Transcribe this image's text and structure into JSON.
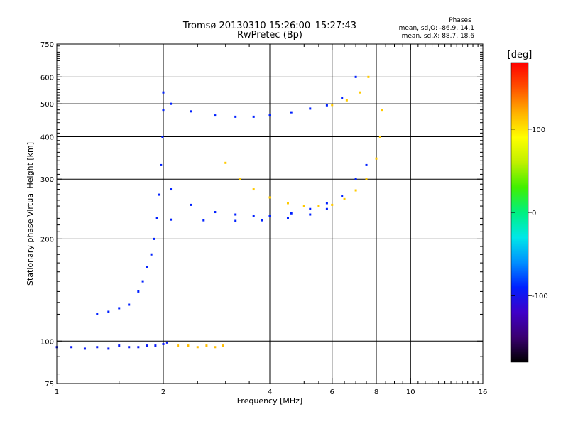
{
  "header": {
    "title": "Tromsø 20130310 15:26:00–15:27:43",
    "subtitle": "RwPretec (Bp)"
  },
  "stats": {
    "heading": "Phases",
    "line_o": "mean, sd,O: -86.9, 14.1",
    "line_x": "mean, sd,X:  88.7, 18.6"
  },
  "axes": {
    "xlabel": "Frequency [MHz]",
    "ylabel": "Stationary phase Virtual Height [km]"
  },
  "colorbar": {
    "label": "[deg]",
    "tick_labels": [
      "100",
      "0",
      "-100"
    ],
    "ticks": [
      100,
      0,
      -100
    ],
    "range": [
      -180,
      180
    ],
    "colors": [
      "#000000",
      "#3a0070",
      "#3f00c8",
      "#0020ff",
      "#0090ff",
      "#00e8e8",
      "#00f080",
      "#40f000",
      "#c0f000",
      "#ffff00",
      "#ffb000",
      "#ff5000",
      "#ff0000"
    ]
  },
  "chart_data": {
    "type": "scatter",
    "title": "Tromsø 20130310 15:26:00–15:27:43",
    "subtitle": "RwPretec (Bp)",
    "xlabel": "Frequency [MHz]",
    "ylabel": "Stationary phase Virtual Height [km]",
    "x_scale": "log",
    "y_scale": "log",
    "xlim": [
      1,
      16
    ],
    "ylim": [
      75,
      750
    ],
    "xticks": [
      1,
      2,
      4,
      6,
      8,
      10,
      16
    ],
    "xtick_labels": [
      "1",
      "2",
      "4",
      "6",
      "8",
      "10",
      "16"
    ],
    "yticks": [
      75,
      100,
      200,
      300,
      400,
      500,
      600,
      750
    ],
    "ytick_labels": [
      "75",
      "100",
      "200",
      "300",
      "400",
      "500",
      "600",
      "750"
    ],
    "grid": true,
    "color_variable": "phase [deg]",
    "series": [
      {
        "values": [
          [
            1.0,
            96,
            -95
          ],
          [
            1.1,
            96,
            -95
          ],
          [
            1.2,
            95,
            -95
          ],
          [
            1.3,
            96,
            -95
          ],
          [
            1.4,
            95,
            -95
          ],
          [
            1.5,
            97,
            -95
          ],
          [
            1.6,
            96,
            -95
          ],
          [
            1.7,
            96,
            -95
          ],
          [
            1.8,
            97,
            -95
          ],
          [
            1.9,
            97,
            -95
          ],
          [
            2.0,
            98,
            -95
          ],
          [
            2.05,
            99,
            -95
          ]
        ]
      },
      {
        "values": [
          [
            2.2,
            97,
            115
          ],
          [
            2.35,
            97,
            115
          ],
          [
            2.5,
            96,
            115
          ],
          [
            2.65,
            97,
            115
          ],
          [
            2.8,
            96,
            115
          ],
          [
            2.95,
            97,
            115
          ]
        ]
      },
      {
        "values": [
          [
            1.3,
            120,
            -90
          ],
          [
            1.4,
            122,
            -90
          ],
          [
            1.5,
            125,
            -90
          ],
          [
            1.6,
            128,
            -90
          ],
          [
            1.7,
            140,
            -90
          ],
          [
            1.75,
            150,
            -90
          ],
          [
            1.8,
            165,
            -90
          ],
          [
            1.85,
            180,
            -90
          ],
          [
            1.88,
            200,
            -90
          ],
          [
            1.92,
            230,
            -90
          ],
          [
            1.95,
            270,
            -90
          ],
          [
            1.97,
            330,
            -90
          ],
          [
            1.99,
            400,
            -90
          ],
          [
            2.0,
            480,
            -90
          ],
          [
            2.0,
            540,
            -90
          ]
        ]
      },
      {
        "values": [
          [
            2.1,
            500,
            -90
          ],
          [
            2.4,
            475,
            -90
          ],
          [
            2.8,
            462,
            -90
          ],
          [
            3.2,
            458,
            -90
          ],
          [
            3.6,
            458,
            -90
          ],
          [
            4.0,
            462,
            -90
          ],
          [
            4.6,
            472,
            -90
          ],
          [
            5.2,
            484,
            -90
          ],
          [
            5.8,
            495,
            -90
          ],
          [
            6.4,
            520,
            -90
          ],
          [
            7.0,
            600,
            -90
          ]
        ]
      },
      {
        "values": [
          [
            2.1,
            280,
            -90
          ],
          [
            2.4,
            252,
            -90
          ],
          [
            2.8,
            240,
            -90
          ],
          [
            3.2,
            236,
            -90
          ],
          [
            3.6,
            234,
            -90
          ],
          [
            4.0,
            234,
            -90
          ],
          [
            4.6,
            238,
            -90
          ],
          [
            5.2,
            245,
            -90
          ],
          [
            5.8,
            255,
            -90
          ],
          [
            6.4,
            268,
            -90
          ],
          [
            7.0,
            300,
            -90
          ],
          [
            7.5,
            330,
            -90
          ]
        ]
      },
      {
        "values": [
          [
            2.1,
            228,
            -90
          ],
          [
            2.6,
            227,
            -90
          ],
          [
            3.2,
            226,
            -90
          ],
          [
            3.8,
            227,
            -90
          ],
          [
            4.5,
            230,
            -90
          ],
          [
            5.2,
            236,
            -90
          ],
          [
            5.8,
            245,
            -90
          ]
        ]
      },
      {
        "values": [
          [
            3.0,
            335,
            110
          ],
          [
            3.3,
            300,
            110
          ],
          [
            3.6,
            280,
            110
          ],
          [
            4.0,
            265,
            110
          ],
          [
            4.5,
            255,
            110
          ],
          [
            5.0,
            250,
            110
          ],
          [
            5.5,
            250,
            110
          ],
          [
            6.0,
            252,
            110
          ],
          [
            6.5,
            262,
            110
          ],
          [
            7.0,
            278,
            110
          ],
          [
            7.5,
            300,
            110
          ],
          [
            8.0,
            345,
            110
          ],
          [
            8.2,
            400,
            110
          ],
          [
            8.3,
            480,
            110
          ]
        ]
      },
      {
        "values": [
          [
            6.0,
            496,
            110
          ],
          [
            6.6,
            512,
            110
          ],
          [
            7.2,
            540,
            110
          ],
          [
            7.6,
            600,
            110
          ]
        ]
      }
    ]
  }
}
